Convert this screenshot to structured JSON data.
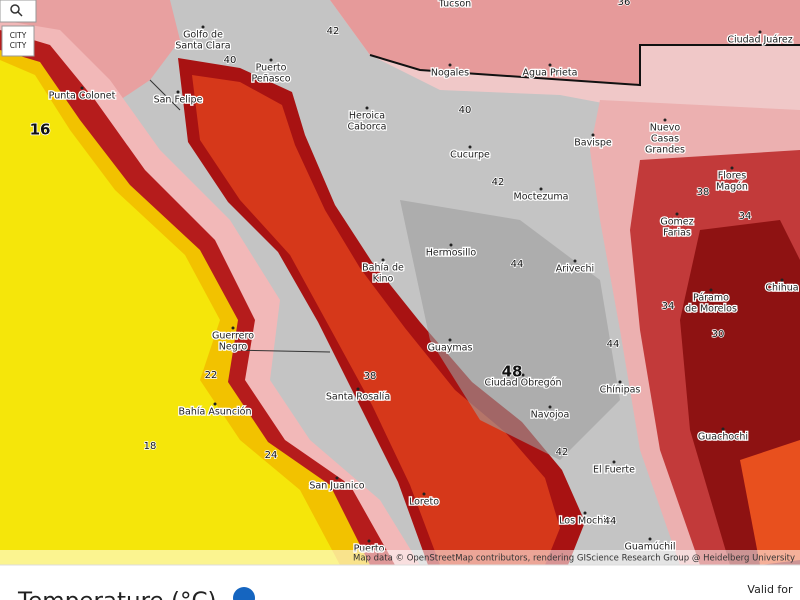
{
  "map": {
    "city_button": "CITY",
    "attribution": "Map data © OpenStreetMap contributors, rendering GIScience Research Group @ Heidelberg University",
    "cities": [
      [
        "Tucson"
      ],
      [
        "Golfo de",
        "Santa Clara"
      ],
      [
        "Puerto",
        "Peñasco"
      ],
      [
        "Punta Colonet"
      ],
      [
        "San Felipe"
      ],
      [
        "Heroica",
        "Caborca"
      ],
      [
        "Nogales"
      ],
      [
        "Agua Prieta"
      ],
      [
        "Ciudad Juárez"
      ],
      [
        "Nuevo",
        "Casas",
        "Grandes"
      ],
      [
        "Bavispe"
      ],
      [
        "Cucurpe"
      ],
      [
        "Moctezuma"
      ],
      [
        "Hermosillo"
      ],
      [
        "Arivechi"
      ],
      [
        "Bahía de",
        "Kino"
      ],
      [
        "Gomez",
        "Farias"
      ],
      [
        "Flores",
        "Magón"
      ],
      [
        "Páramo",
        "de Morelos"
      ],
      [
        "Chihua"
      ],
      [
        "Guerrero",
        "Negro"
      ],
      [
        "Guaymas"
      ],
      [
        "Ciudad Obregón"
      ],
      [
        "Chínipas"
      ],
      [
        "Navojoa"
      ],
      [
        "Bahía Asunción"
      ],
      [
        "Santa Rosalía"
      ],
      [
        "Guachochi"
      ],
      [
        "El Fuerte"
      ],
      [
        "San Juanico"
      ],
      [
        "Loreto"
      ],
      [
        "Los Mochis"
      ],
      [
        "Puerto"
      ],
      [
        "Guamúchil"
      ]
    ],
    "contour_labels": [
      "42",
      "40",
      "16",
      "40",
      "42",
      "38",
      "34",
      "44",
      "34",
      "30",
      "44",
      "22",
      "38",
      "48",
      "18",
      "42",
      "24",
      "44",
      "36"
    ]
  },
  "panel": {
    "title": "Temperature (°C)",
    "valid_for": "Valid for"
  }
}
